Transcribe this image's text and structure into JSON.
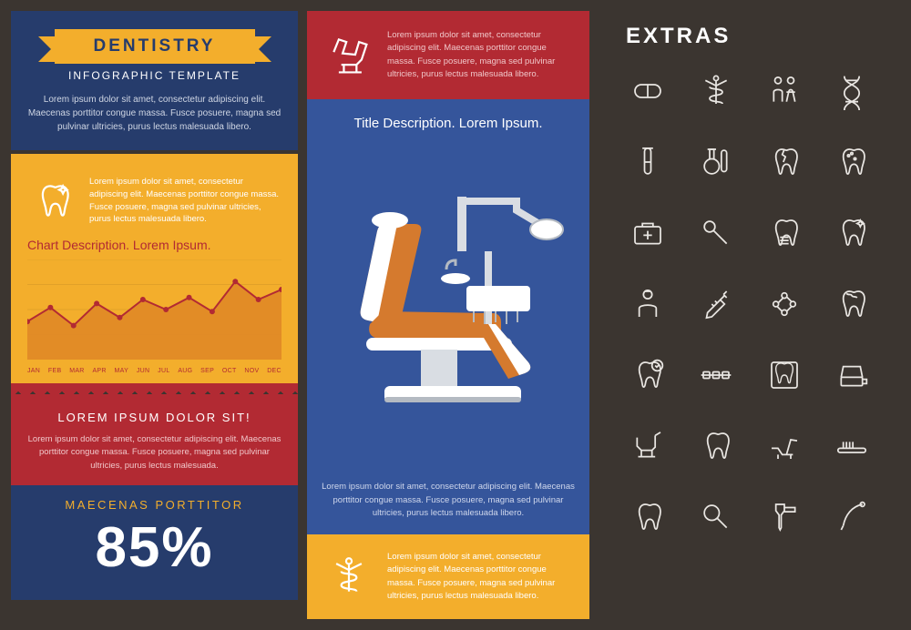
{
  "colors": {
    "bg": "#3b3530",
    "blue_dark": "#263c6c",
    "blue": "#35559b",
    "orange": "#f3ae2c",
    "red": "#b22a33",
    "white": "#ffffff",
    "hero_body": "#cfd6e4",
    "chart_line": "#b22a33",
    "chart_area": "#e08a26",
    "icon_stroke": "#e9e6e2"
  },
  "left": {
    "ribbon": "DENTISTRY",
    "subtitle": "INFOGRAPHIC TEMPLATE",
    "hero_body": "Lorem ipsum dolor sit amet, consectetur adipiscing elit. Maecenas porttitor congue massa. Fusce posuere, magna sed pulvinar ultricies, purus lectus malesuada libero.",
    "chart_body": "Lorem ipsum dolor sit amet, consectetur adipiscing elit. Maecenas porttitor congue massa. Fusce posuere, magna sed pulvinar ultricies, purus lectus malesuada libero.",
    "chart_title": "Chart Description. Lorem Ipsum.",
    "chart": {
      "type": "area-line",
      "x_labels": [
        "JAN",
        "FEB",
        "MAR",
        "APR",
        "MAY",
        "JUN",
        "JUL",
        "AUG",
        "SEP",
        "OCT",
        "NOV",
        "DEC"
      ],
      "y_values": [
        38,
        52,
        34,
        56,
        42,
        60,
        50,
        62,
        48,
        78,
        60,
        70
      ],
      "ylim": [
        0,
        100
      ],
      "line_color": "#b22a33",
      "area_color": "#e08a26",
      "marker_color": "#b22a33",
      "grid_color": "#d19326",
      "marker_r": 3,
      "line_width": 2
    },
    "red_title": "LOREM IPSUM DOLOR SIT!",
    "red_body": "Lorem ipsum dolor sit amet, consectetur adipiscing elit. Maecenas porttitor congue massa. Fusce posuere, magna sed pulvinar ultricies, purus lectus malesuada.",
    "big_label": "MAECENAS PORTTITOR",
    "big_value": "85%"
  },
  "mid": {
    "red_body": "Lorem ipsum dolor sit amet, consectetur adipiscing elit. Maecenas porttitor congue massa. Fusce posuere, magna sed pulvinar ultricies, purus lectus malesuada libero.",
    "blue_title": "Title Description. Lorem Ipsum.",
    "blue_body": "Lorem ipsum dolor sit amet, consectetur adipiscing elit. Maecenas porttitor congue massa. Fusce posuere, magna sed pulvinar ultricies, purus lectus malesuada libero.",
    "orange_body": "Lorem ipsum dolor sit amet, consectetur adipiscing elit. Maecenas porttitor congue massa. Fusce posuere, magna sed pulvinar ultricies, purus lectus malesuada libero.",
    "chair_colors": {
      "seat": "#d57a2e",
      "frame": "#ffffff",
      "shade": "#d9dde3",
      "dark": "#b4bac2"
    },
    "red_icon": "dentist-chair-icon",
    "orange_icon": "caduceus-icon"
  },
  "right": {
    "title": "EXTRAS",
    "icons": [
      "pill-icon",
      "caduceus-icon",
      "people-icon",
      "dna-icon",
      "test-tube-icon",
      "flask-tube-icon",
      "tooth-crack-icon",
      "tooth-cavities-icon",
      "first-aid-icon",
      "dental-mirror-icon",
      "implant-icon",
      "tooth-sparkle-icon",
      "dentist-icon",
      "syringe-icon",
      "molecule-icon",
      "tooth-decay-icon",
      "tooth-shield-icon",
      "braces-icon",
      "xray-icon",
      "toothpaste-icon",
      "chair-small-icon",
      "tooth-icon",
      "recliner-icon",
      "toothbrush-icon",
      "tooth-icon",
      "magnifier-icon",
      "drill-icon",
      "pick-icon"
    ]
  }
}
